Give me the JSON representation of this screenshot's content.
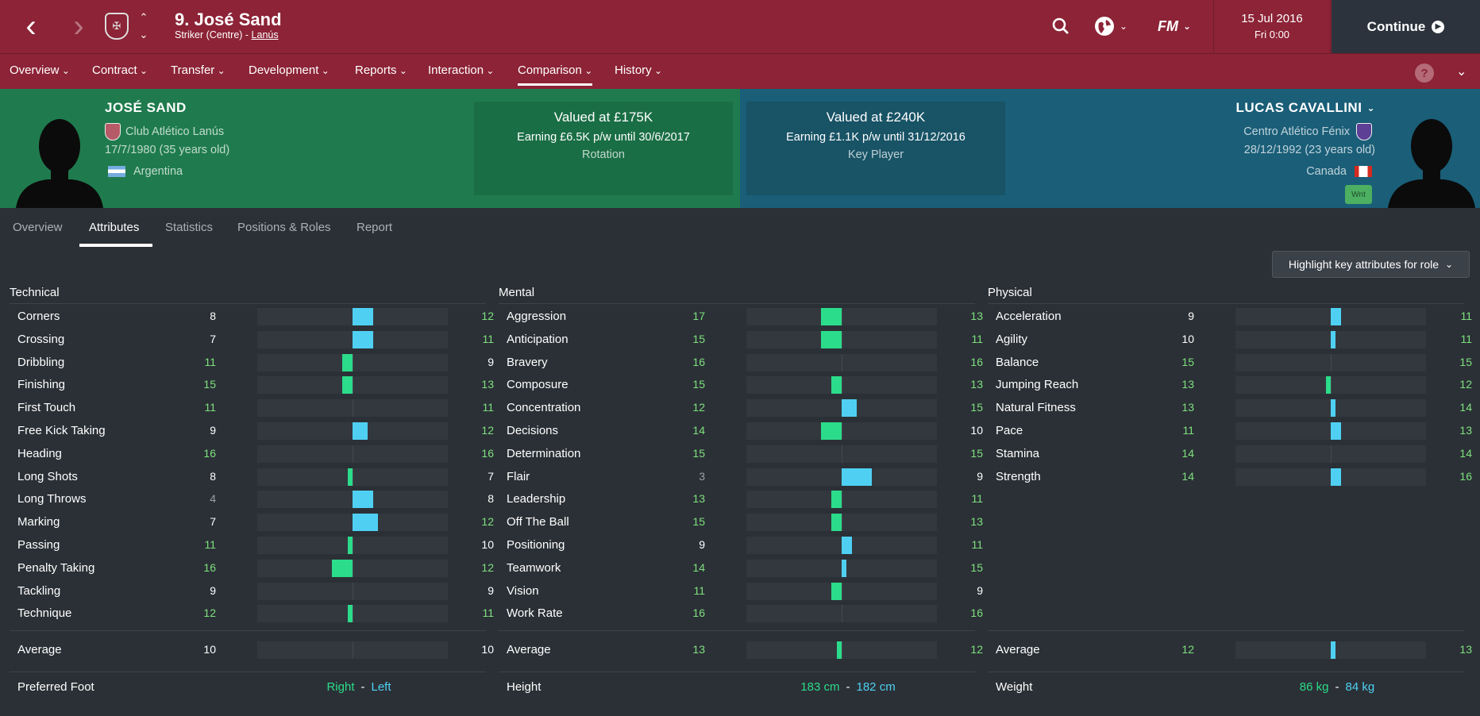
{
  "header": {
    "title": "9. José Sand",
    "subtitle_position": "Striker (Centre)",
    "subtitle_sep": " - ",
    "subtitle_club": "Lanús",
    "date": "15 Jul 2016",
    "time": "Fri 0:00",
    "continue_label": "Continue"
  },
  "menu": [
    {
      "label": "Overview"
    },
    {
      "label": "Contract"
    },
    {
      "label": "Transfer"
    },
    {
      "label": "Development"
    },
    {
      "label": "Reports"
    },
    {
      "label": "Interaction"
    },
    {
      "label": "Comparison"
    },
    {
      "label": "History"
    }
  ],
  "player1": {
    "name": "JOSÉ SAND",
    "club": "Club Atlético Lanús",
    "dob": "17/7/1980 (35 years old)",
    "nation": "Argentina",
    "value": "Valued at £175K",
    "earning": "Earning £6.5K p/w until 30/6/2017",
    "status": "Rotation"
  },
  "player2": {
    "name": "LUCAS CAVALLINI",
    "club": "Centro Atlético Fénix",
    "dob": "28/12/1992 (23 years old)",
    "nation": "Canada",
    "badge": "Wnt",
    "value": "Valued at £240K",
    "earning": "Earning £1.1K p/w until 31/12/2016",
    "status": "Key Player"
  },
  "subtabs": [
    "Overview",
    "Attributes",
    "Statistics",
    "Positions & Roles",
    "Report"
  ],
  "highlight_label": "Highlight key attributes for role",
  "sections": [
    {
      "title": "Technical",
      "rows": [
        [
          "Corners",
          8,
          12
        ],
        [
          "Crossing",
          7,
          11
        ],
        [
          "Dribbling",
          11,
          9
        ],
        [
          "Finishing",
          15,
          13
        ],
        [
          "First Touch",
          11,
          11
        ],
        [
          "Free Kick Taking",
          9,
          12
        ],
        [
          "Heading",
          16,
          16
        ],
        [
          "Long Shots",
          8,
          7
        ],
        [
          "Long Throws",
          4,
          8
        ],
        [
          "Marking",
          7,
          12
        ],
        [
          "Passing",
          11,
          10
        ],
        [
          "Penalty Taking",
          16,
          12
        ],
        [
          "Tackling",
          9,
          9
        ],
        [
          "Technique",
          12,
          11
        ]
      ],
      "average": [
        10,
        10
      ]
    },
    {
      "title": "Mental",
      "rows": [
        [
          "Aggression",
          17,
          13
        ],
        [
          "Anticipation",
          15,
          11
        ],
        [
          "Bravery",
          16,
          16
        ],
        [
          "Composure",
          15,
          13
        ],
        [
          "Concentration",
          12,
          15
        ],
        [
          "Decisions",
          14,
          10
        ],
        [
          "Determination",
          15,
          15
        ],
        [
          "Flair",
          3,
          9
        ],
        [
          "Leadership",
          13,
          11
        ],
        [
          "Off The Ball",
          15,
          13
        ],
        [
          "Positioning",
          9,
          11
        ],
        [
          "Teamwork",
          14,
          15
        ],
        [
          "Vision",
          11,
          9
        ],
        [
          "Work Rate",
          16,
          16
        ]
      ],
      "average": [
        13,
        12
      ]
    },
    {
      "title": "Physical",
      "rows": [
        [
          "Acceleration",
          9,
          11
        ],
        [
          "Agility",
          10,
          11
        ],
        [
          "Balance",
          15,
          15
        ],
        [
          "Jumping Reach",
          13,
          12
        ],
        [
          "Natural Fitness",
          13,
          14
        ],
        [
          "Pace",
          11,
          13
        ],
        [
          "Stamina",
          14,
          14
        ],
        [
          "Strength",
          14,
          16
        ]
      ],
      "average": [
        12,
        13
      ]
    }
  ],
  "average_label": "Average",
  "footer": [
    {
      "label": "Preferred Foot",
      "v1": "Right",
      "sep": "-",
      "v2": "Left"
    },
    {
      "label": "Height",
      "v1": "183 cm",
      "sep": "-",
      "v2": "182 cm"
    },
    {
      "label": "Weight",
      "v1": "86 kg",
      "sep": "-",
      "v2": "84 kg"
    }
  ],
  "colors": {
    "topbar": "#8c2336",
    "player1": "#2bdc8a",
    "player2": "#4fd0f3"
  }
}
